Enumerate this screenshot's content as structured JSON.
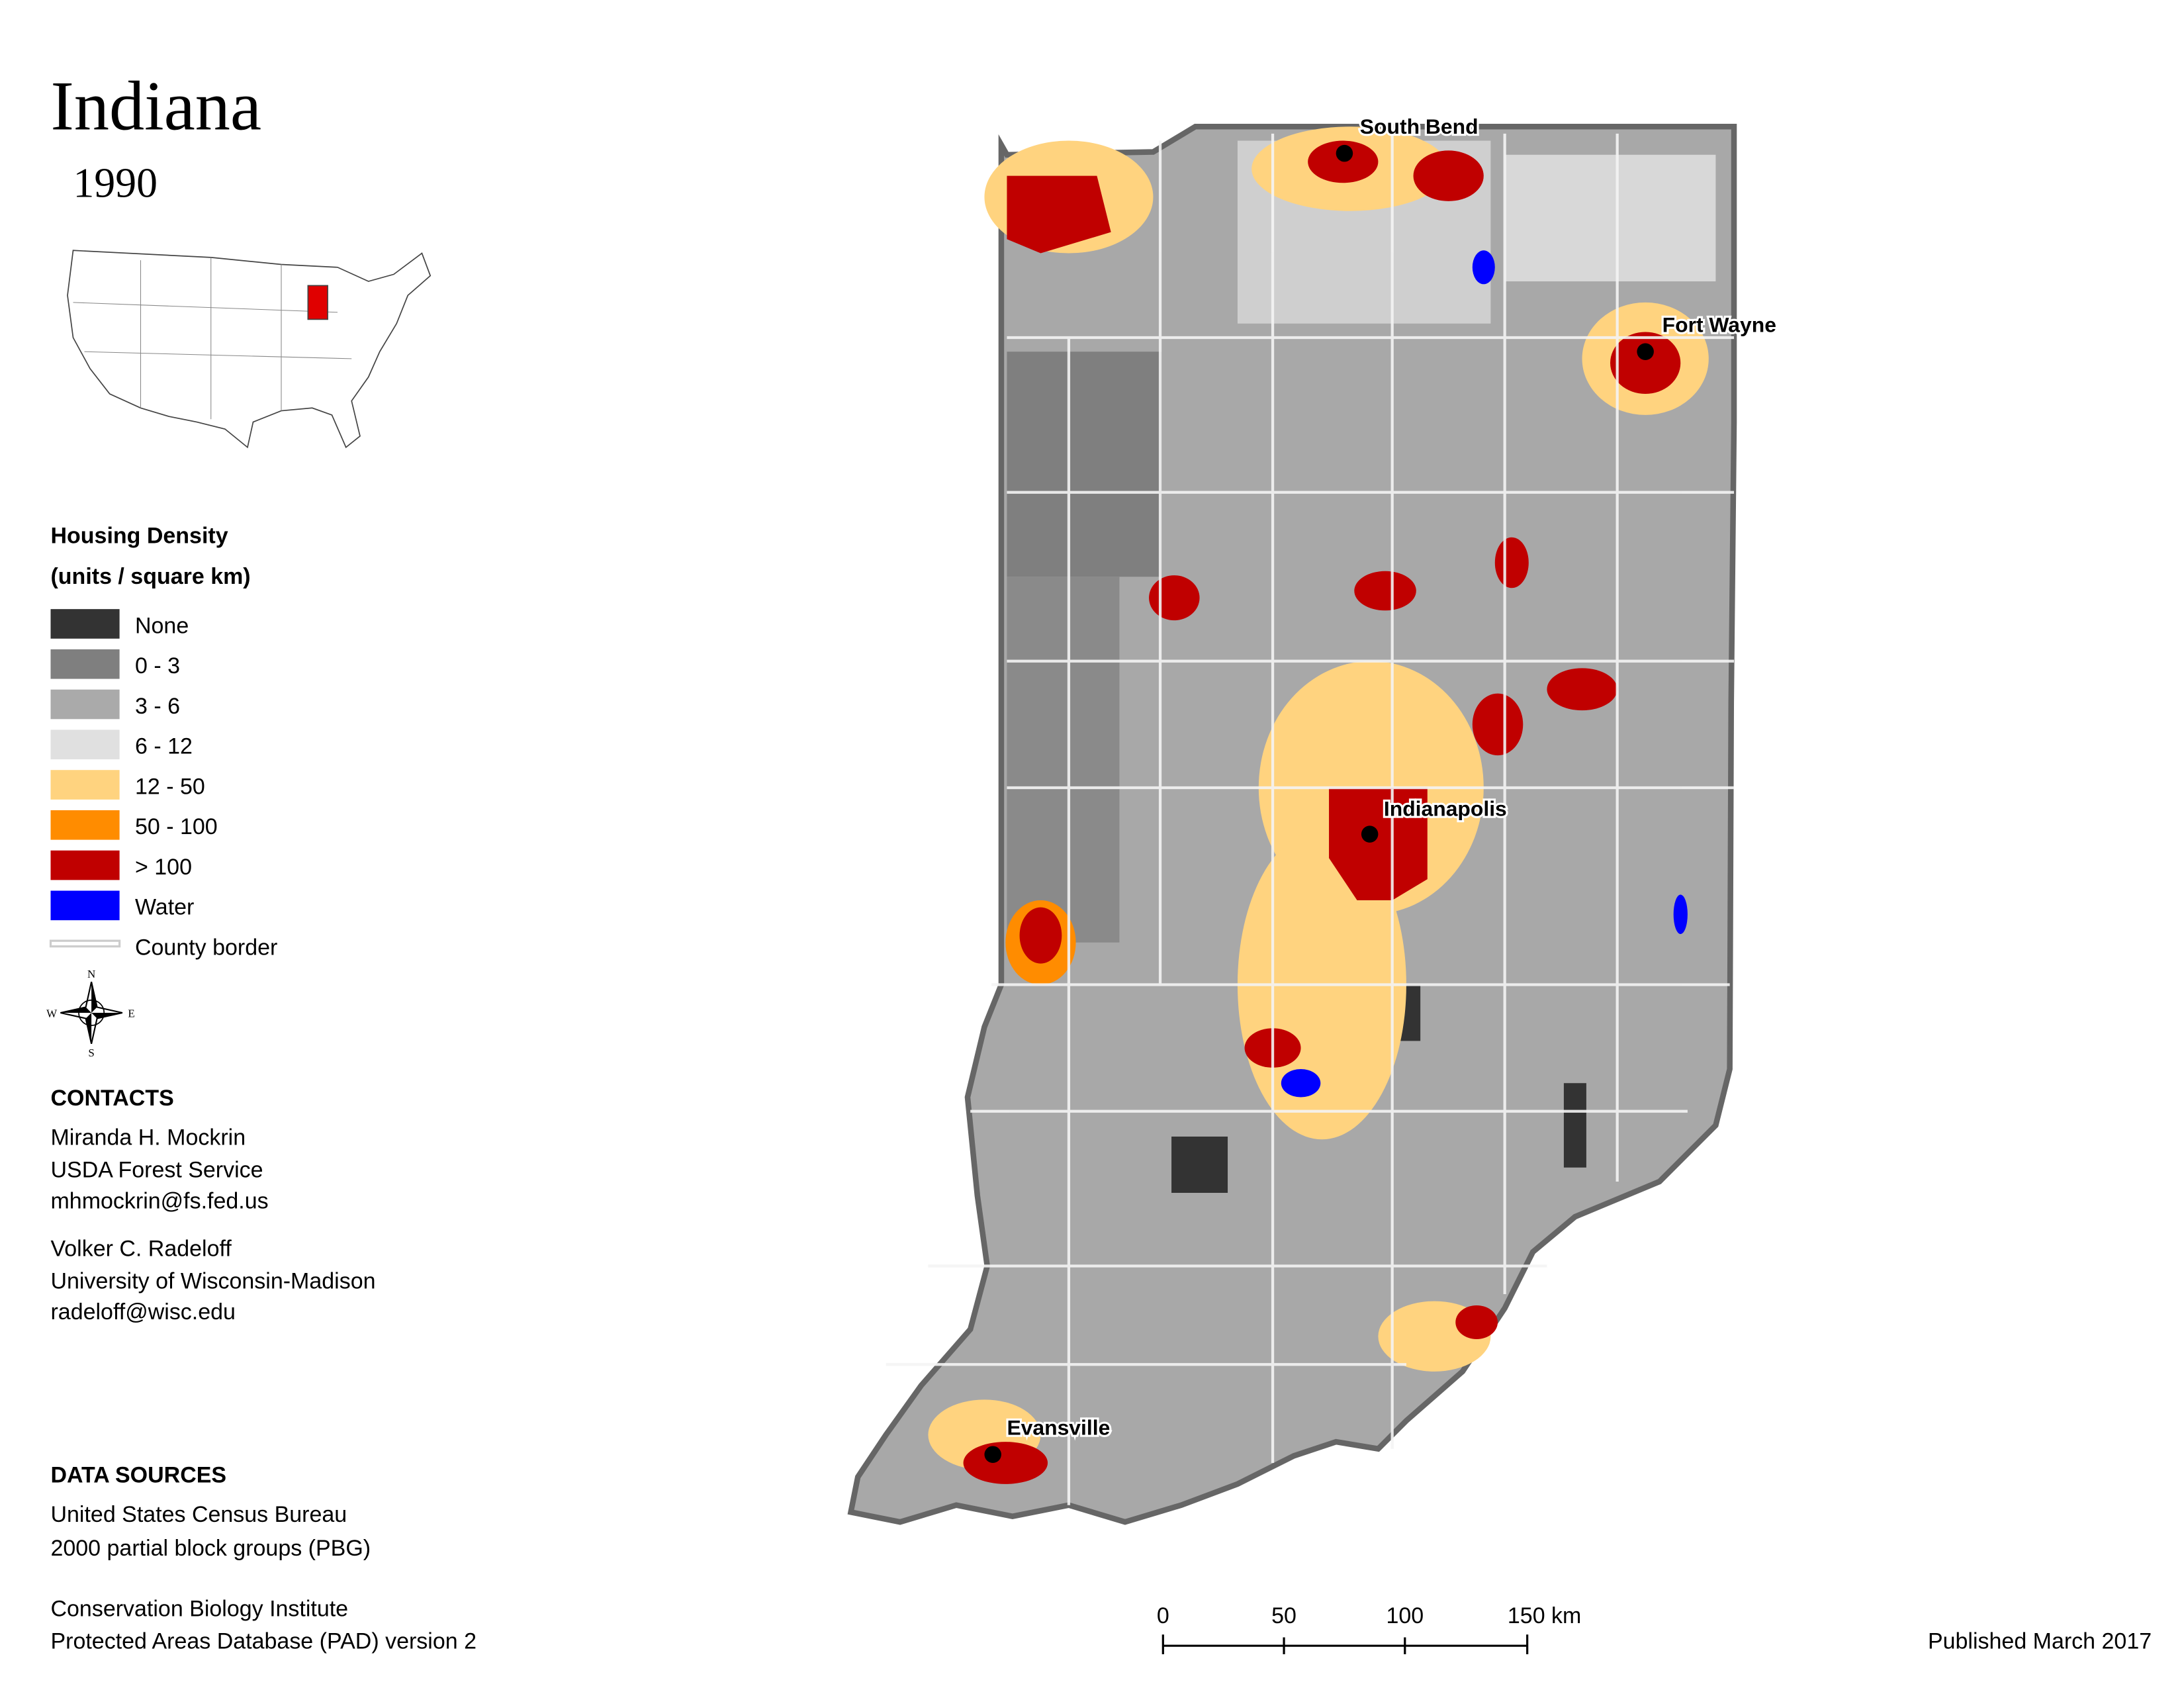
{
  "header": {
    "title": "Indiana",
    "year": "1990"
  },
  "legend": {
    "title": "Housing Density",
    "subtitle": "(units / square km)",
    "items": [
      {
        "label": "None",
        "color": "#333333"
      },
      {
        "label": "0 - 3",
        "color": "#7f7f7f"
      },
      {
        "label": "3 - 6",
        "color": "#aaaaaa"
      },
      {
        "label": "6 - 12",
        "color": "#e0e0e0"
      },
      {
        "label": "12 - 50",
        "color": "#ffd37f"
      },
      {
        "label": "50 - 100",
        "color": "#ff8c00"
      },
      {
        "label": "> 100",
        "color": "#c00000"
      },
      {
        "label": "Water",
        "color": "#0000ff"
      },
      {
        "label": "County border",
        "color": "#cccccc"
      }
    ]
  },
  "compass": {
    "n": "N",
    "s": "S",
    "e": "E",
    "w": "W"
  },
  "contacts": {
    "title": "CONTACTS",
    "people": [
      [
        "Miranda H. Mockrin",
        "USDA Forest Service",
        "mhmockrin@fs.fed.us"
      ],
      [
        "Volker C. Radeloff",
        "University of Wisconsin-Madison",
        "radeloff@wisc.edu"
      ]
    ]
  },
  "data_sources": {
    "title": "DATA SOURCES",
    "entries": [
      [
        "United States Census Bureau",
        "2000 partial block groups (PBG)"
      ],
      [
        "Conservation Biology Institute",
        "Protected Areas Database (PAD) version 2"
      ]
    ]
  },
  "cities": [
    "South Bend",
    "Fort Wayne",
    "Indianapolis",
    "Evansville"
  ],
  "scale_bar": [
    "0",
    "50",
    "100",
    "150 km"
  ],
  "published": "Published March 2017"
}
